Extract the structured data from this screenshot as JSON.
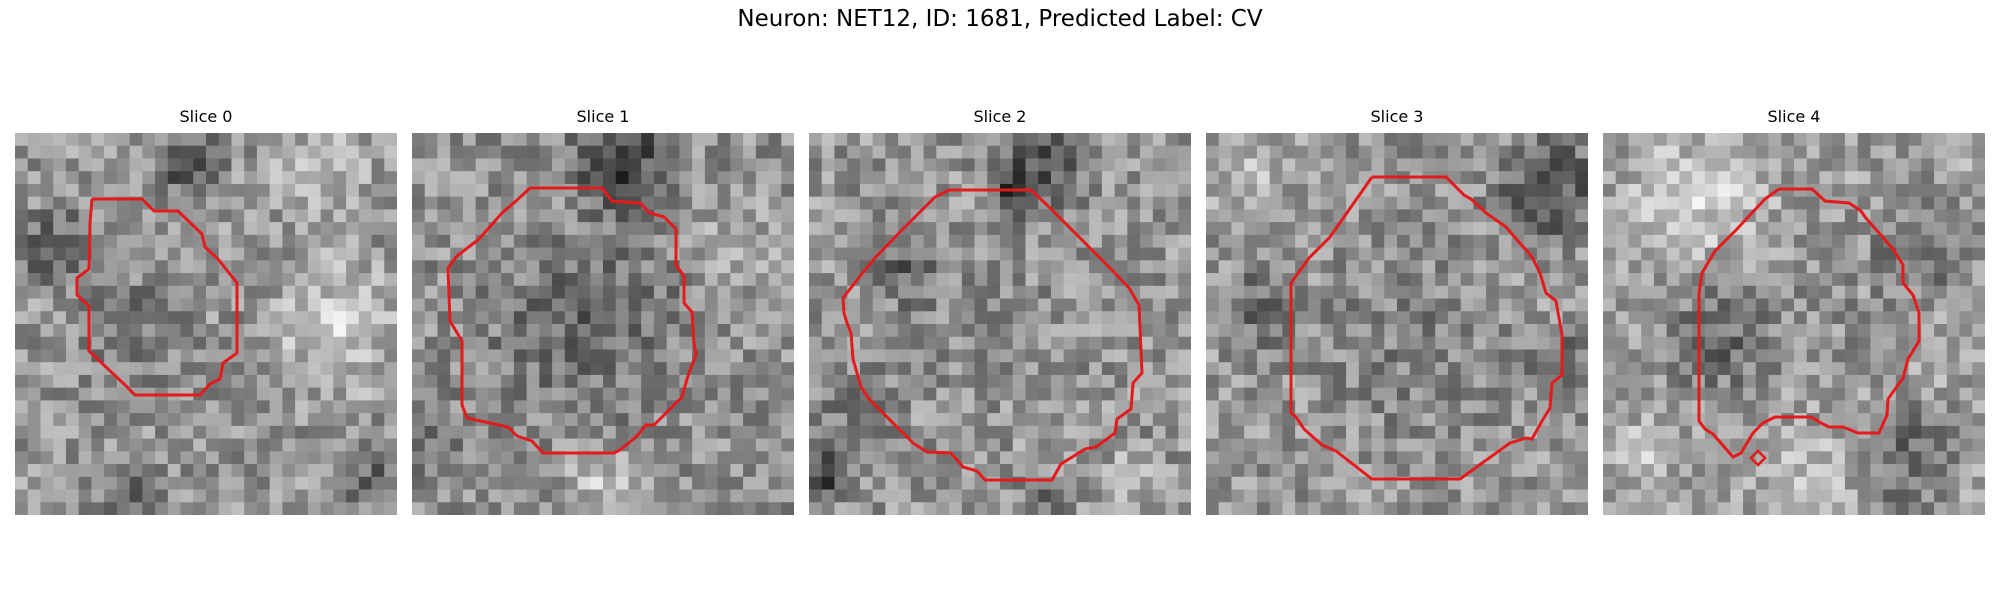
{
  "figure": {
    "title": "Neuron: NET12, ID: 1681, Predicted Label: CV",
    "contour_color": "#e41a1c"
  },
  "panels": [
    {
      "title": "Slice 0",
      "image": "grayscale-microscopy-patch-0",
      "contour": "red-neuron-outline"
    },
    {
      "title": "Slice 1",
      "image": "grayscale-microscopy-patch-1",
      "contour": "red-neuron-outline"
    },
    {
      "title": "Slice 2",
      "image": "grayscale-microscopy-patch-2",
      "contour": "red-neuron-outline"
    },
    {
      "title": "Slice 3",
      "image": "grayscale-microscopy-patch-3",
      "contour": "red-neuron-outline"
    },
    {
      "title": "Slice 4",
      "image": "grayscale-microscopy-patch-4",
      "contour": "red-neuron-outline"
    }
  ]
}
